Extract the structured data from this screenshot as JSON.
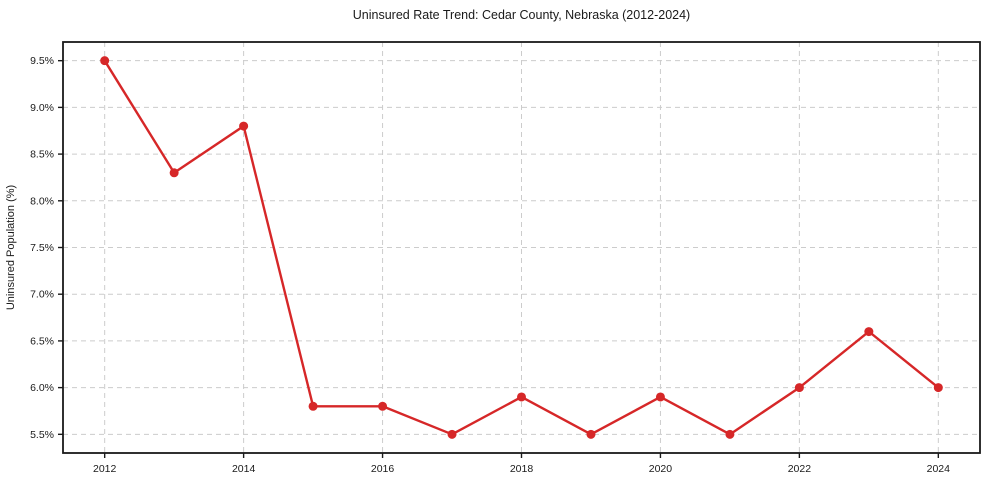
{
  "chart_data": {
    "type": "line",
    "title": "Uninsured Rate Trend: Cedar County, Nebraska (2012-2024)",
    "xlabel": "",
    "ylabel": "Uninsured Population (%)",
    "x": [
      2012,
      2013,
      2014,
      2015,
      2016,
      2017,
      2018,
      2019,
      2020,
      2021,
      2022,
      2023,
      2024
    ],
    "values": [
      9.5,
      8.3,
      8.8,
      5.8,
      5.8,
      5.5,
      5.9,
      5.5,
      5.9,
      5.5,
      6.0,
      6.6,
      6.0
    ],
    "xlim": [
      2011.4,
      2024.6
    ],
    "ylim": [
      5.3,
      9.7
    ],
    "xticks": [
      2012,
      2014,
      2016,
      2018,
      2020,
      2022,
      2024
    ],
    "xtick_labels": [
      "2012",
      "2014",
      "2016",
      "2018",
      "2020",
      "2022",
      "2024"
    ],
    "yticks": [
      5.5,
      6.0,
      6.5,
      7.0,
      7.5,
      8.0,
      8.5,
      9.0,
      9.5
    ],
    "ytick_labels": [
      "5.5%",
      "6.0%",
      "6.5%",
      "7.0%",
      "7.5%",
      "8.0%",
      "8.5%",
      "9.0%",
      "9.5%"
    ],
    "grid": "both-dashed",
    "legend": "none",
    "colors": {
      "line": "#d62728",
      "marker": "#d62728",
      "grid": "#cccccc",
      "spine": "#1a1a1a",
      "background": "#ffffff"
    }
  }
}
